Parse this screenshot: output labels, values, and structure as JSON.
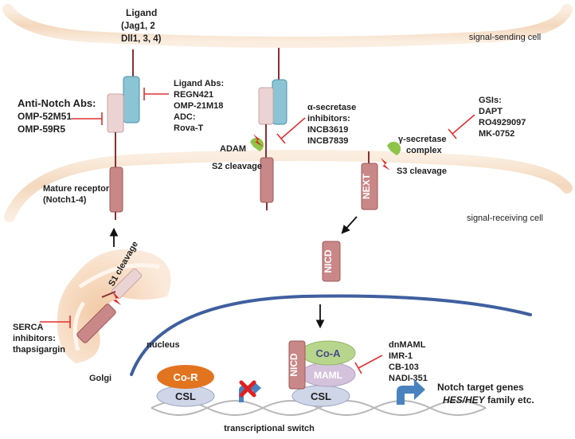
{
  "cells": {
    "sending": "signal-sending cell",
    "receiving": "signal-receiving cell"
  },
  "ligand": {
    "title": "Ligand",
    "line2": "(Jag1, 2",
    "line3": "Dll1, 3, 4)"
  },
  "ligand_abs": {
    "title": "Ligand Abs:",
    "items": [
      "REGN421",
      "OMP-21M18",
      "ADC:",
      "Rova-T"
    ]
  },
  "anti_notch": {
    "title": "Anti-Notch Abs:",
    "items": [
      "OMP-52M51",
      "OMP-59R5"
    ]
  },
  "alpha_inhibitors": {
    "lines": [
      "α-secretase",
      "inhibitors:",
      "INCB3619",
      "INCB7839"
    ]
  },
  "gsis": {
    "title": "GSIs:",
    "items": [
      "DAPT",
      "RO4929097",
      "MK-0752"
    ]
  },
  "gamma_label": [
    "γ-secretase",
    "complex"
  ],
  "adam": "ADAM",
  "s2": "S2 cleavage",
  "s3": "S3 cleavage",
  "mature_receptor": [
    "Mature receptor",
    "(Notch1-4)"
  ],
  "next": "NEXT",
  "nicd": "NICD",
  "s1": "S1 cleavage",
  "golgi": "Golgi",
  "serca": [
    "SERCA",
    "inhibitors:",
    "thapsigargin"
  ],
  "nucleus": "nucleus",
  "cor": "Co-R",
  "csl": "CSL",
  "coa": "Co-A",
  "maml": "MAML",
  "maml_inhibitors": [
    "dnMAML",
    "IMR-1",
    "CB-103",
    "NADI-351"
  ],
  "target_genes": {
    "line1": "Notch target genes",
    "line2_italic": "HES/HEY",
    "line2_rest": " family etc."
  },
  "switch": "transcriptional switch",
  "colors": {
    "membrane": "#f4dcc3",
    "receptor": "#c98787",
    "receptor_light": "#ecd3d3",
    "ligand": "#8bc4d4",
    "inhibitor": "#e03030",
    "enzyme": "#8ec447",
    "nucleus_line": "#3f5f9f",
    "cor": "#e2741f",
    "csl": "#cfd6e8",
    "coa": "#b7d58c",
    "maml": "#d4c2dc",
    "gene_arrow": "#4a82c0",
    "block_x": "#e02020"
  }
}
